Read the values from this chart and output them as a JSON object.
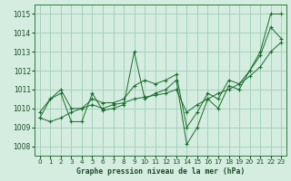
{
  "xlabel": "Graphe pression niveau de la mer (hPa)",
  "ylim": [
    1007.5,
    1015.5
  ],
  "xlim": [
    -0.5,
    23.5
  ],
  "yticks": [
    1008,
    1009,
    1010,
    1011,
    1012,
    1013,
    1014,
    1015
  ],
  "xticks": [
    0,
    1,
    2,
    3,
    4,
    5,
    6,
    7,
    8,
    9,
    10,
    11,
    12,
    13,
    14,
    15,
    16,
    17,
    18,
    19,
    20,
    21,
    22,
    23
  ],
  "background_color": "#d4ede0",
  "grid_color": "#9ecfb4",
  "line_color": "#1a6b2a",
  "series": [
    [
      1009.5,
      1010.5,
      1010.8,
      1009.3,
      1009.3,
      1010.8,
      1009.9,
      1010.0,
      1010.2,
      1013.0,
      1010.5,
      1010.8,
      1011.0,
      1011.5,
      1008.1,
      1009.0,
      1010.5,
      1010.0,
      1011.2,
      1011.0,
      1012.0,
      1012.8,
      1014.3,
      1013.7
    ],
    [
      1009.5,
      1009.3,
      1009.5,
      1009.8,
      1010.0,
      1010.2,
      1010.0,
      1010.2,
      1010.3,
      1010.5,
      1010.6,
      1010.7,
      1010.8,
      1011.0,
      1009.8,
      1010.2,
      1010.5,
      1010.8,
      1011.0,
      1011.3,
      1011.7,
      1012.2,
      1013.0,
      1013.5
    ],
    [
      1009.8,
      1010.5,
      1011.0,
      1010.0,
      1010.0,
      1010.5,
      1010.3,
      1010.3,
      1010.5,
      1011.2,
      1011.5,
      1011.3,
      1011.5,
      1011.8,
      1009.0,
      1009.8,
      1010.8,
      1010.5,
      1011.5,
      1011.3,
      1012.0,
      1013.0,
      1015.0,
      1015.0
    ]
  ]
}
